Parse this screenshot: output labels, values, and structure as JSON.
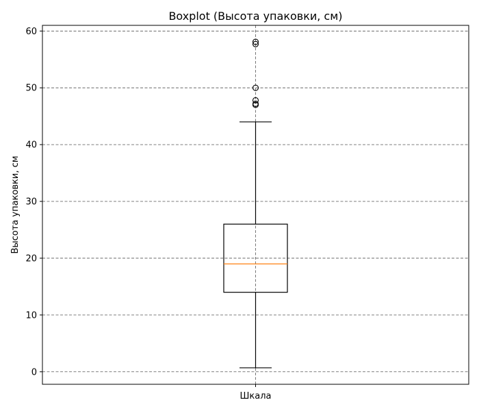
{
  "chart_data": {
    "type": "boxplot",
    "title": "Boxplot (Высота упаковки, см)",
    "xlabel": "",
    "ylabel": "Высота упаковки, см",
    "categories": [
      "Шкала"
    ],
    "ylim": [
      -2.2,
      61
    ],
    "yticks": [
      0,
      10,
      20,
      30,
      40,
      50,
      60
    ],
    "grid": true,
    "grid_style": "dashed",
    "boxes": [
      {
        "category": "Шкала",
        "whisker_low": 0.7,
        "q1": 14,
        "median": 19,
        "q3": 26,
        "whisker_high": 44,
        "outliers": [
          47.0,
          47.2,
          47.8,
          50.0,
          57.7,
          58.1
        ]
      }
    ],
    "colors": {
      "box": "#000000",
      "median": "#ff7f0e",
      "grid": "#555555"
    }
  }
}
